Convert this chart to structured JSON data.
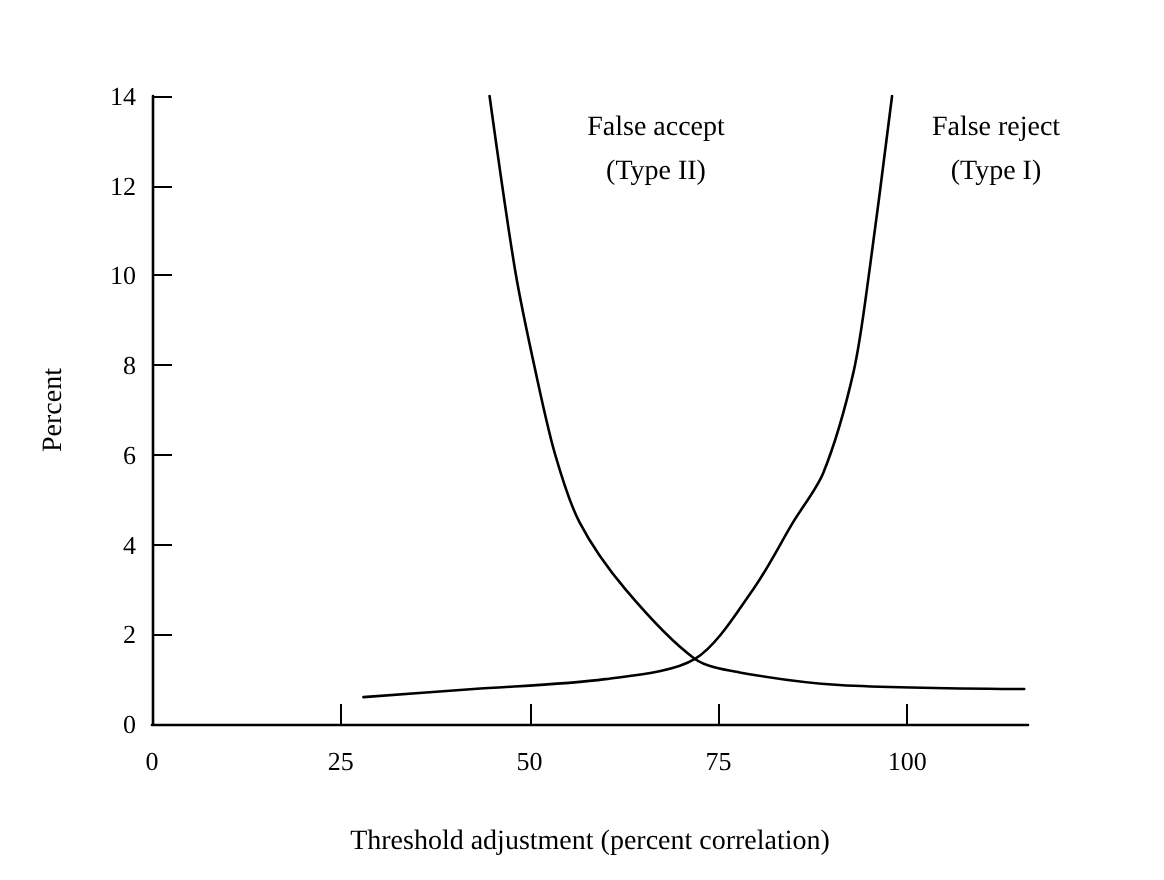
{
  "chart_data": {
    "type": "line",
    "xlabel": "Threshold adjustment (percent correlation)",
    "ylabel": "Percent",
    "xlim": [
      0,
      116
    ],
    "xticks": [
      0,
      25,
      50,
      75,
      100
    ],
    "ylim": [
      0,
      14
    ],
    "yticks": [
      0,
      2,
      4,
      6,
      8,
      10,
      12,
      14
    ],
    "grid": false,
    "marker": "none",
    "line_style": "solid",
    "series": [
      {
        "color": "#000000",
        "x": [
          44.7,
          48.1,
          50.8,
          53.4,
          56.6,
          62.7,
          71.9,
          77.8,
          91,
          115.5
        ],
        "values": [
          14,
          10.1,
          7.85,
          6,
          4.5,
          3,
          1.45,
          1.15,
          0.87,
          0.78
        ]
      },
      {
        "color": "#000000",
        "x": [
          28,
          42.6,
          60,
          71.9,
          79.6,
          84.9,
          88.9,
          92.9,
          95,
          98
        ],
        "values": [
          0.6,
          0.78,
          1,
          1.45,
          3,
          4.5,
          5.6,
          7.85,
          10.1,
          14
        ]
      }
    ],
    "annotations": [
      "False accept\n(Type II)",
      "False reject\n(Type I)"
    ]
  }
}
